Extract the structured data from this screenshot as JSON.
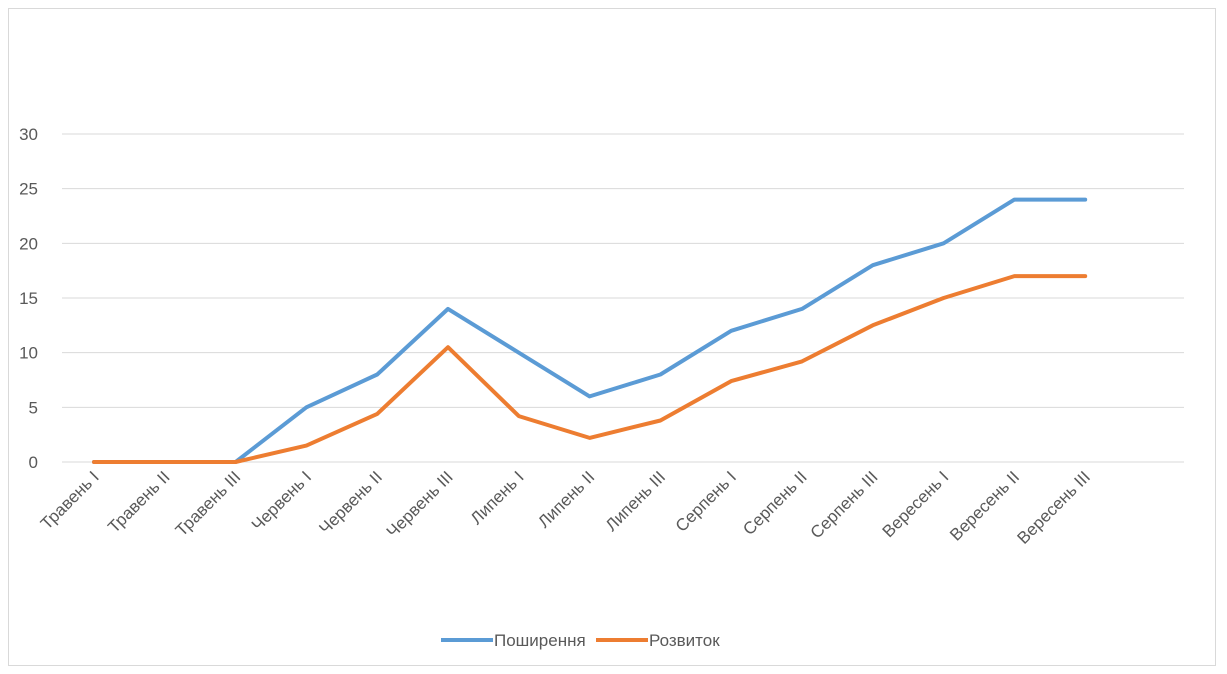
{
  "chart_data": {
    "type": "line",
    "title": "",
    "xlabel": "",
    "ylabel": "",
    "categories": [
      "Травень I",
      "Травень II",
      "Травень III",
      "Червень I",
      "Червень II",
      "Червень III",
      "Липень I",
      "Липень II",
      "Липень III",
      "Серпень I",
      "Серпень II",
      "Серпень III",
      "Вересень I",
      "Вересень II",
      "Вересень III"
    ],
    "series": [
      {
        "name": "Поширення",
        "color": "#5b9bd5",
        "values": [
          0,
          0,
          0,
          5,
          8,
          14,
          10,
          6,
          8,
          12,
          14,
          18,
          20,
          24,
          24
        ]
      },
      {
        "name": "Розвиток",
        "color": "#ed7d31",
        "values": [
          0,
          0,
          0,
          1.5,
          4.4,
          10.5,
          4.2,
          2.2,
          3.8,
          7.4,
          9.2,
          12.5,
          15,
          17,
          17
        ]
      }
    ],
    "ylim": [
      0,
      30
    ],
    "yticks": [
      0,
      5,
      10,
      15,
      20,
      25,
      30
    ],
    "grid": true,
    "legend_position": "bottom"
  }
}
